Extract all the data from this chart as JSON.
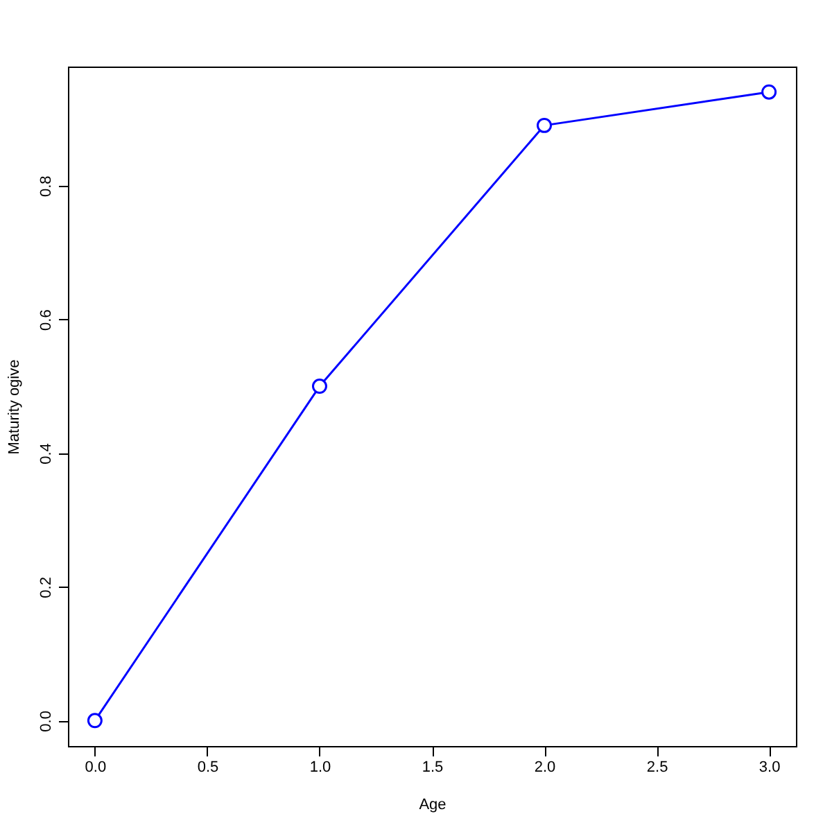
{
  "chart_data": {
    "type": "line",
    "xlabel": "Age",
    "ylabel": "Maturity ogive",
    "x": [
      0,
      1,
      2,
      3
    ],
    "series": [
      {
        "color": "#0000ff",
        "values": [
          0,
          0.5,
          0.89,
          0.94
        ]
      }
    ],
    "xlim": [
      -0.12,
      3.12
    ],
    "ylim": [
      -0.038,
      0.978
    ],
    "xticks": [
      {
        "value": 0,
        "label": "0.0"
      },
      {
        "value": 0.5,
        "label": "0.5"
      },
      {
        "value": 1,
        "label": "1.0"
      },
      {
        "value": 1.5,
        "label": "1.5"
      },
      {
        "value": 2,
        "label": "2.0"
      },
      {
        "value": 2.5,
        "label": "2.5"
      },
      {
        "value": 3,
        "label": "3.0"
      }
    ],
    "yticks": [
      {
        "value": 0,
        "label": "0.0"
      },
      {
        "value": 0.2,
        "label": "0.2"
      },
      {
        "value": 0.4,
        "label": "0.4"
      },
      {
        "value": 0.6,
        "label": "0.6"
      },
      {
        "value": 0.8,
        "label": "0.8"
      }
    ],
    "grid": false,
    "legend": false,
    "marker": "circle",
    "line_style": "solid"
  }
}
